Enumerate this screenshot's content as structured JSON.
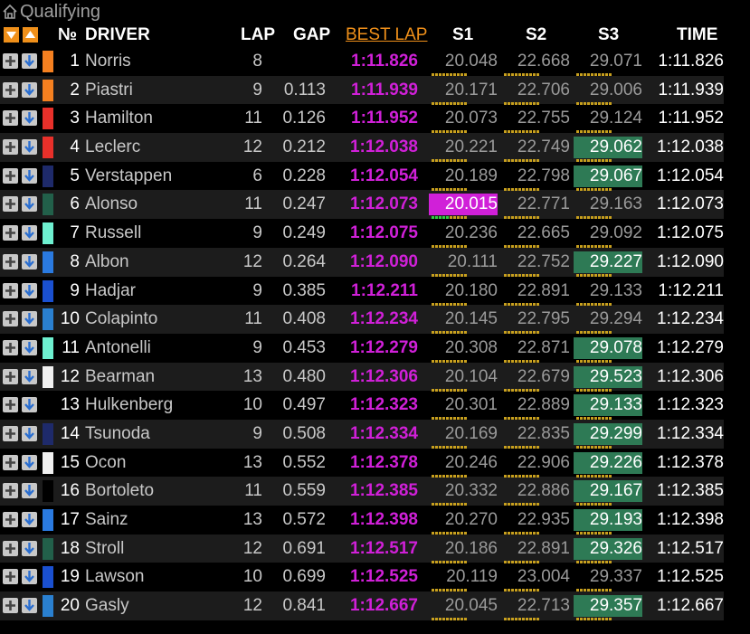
{
  "window": {
    "title": "Qualifying"
  },
  "header": {
    "no": "№",
    "driver": "DRIVER",
    "lap": "LAP",
    "gap": "GAP",
    "best_lap": "BEST LAP",
    "s1": "S1",
    "s2": "S2",
    "s3": "S3",
    "time": "TIME"
  },
  "colors": {
    "best_lap": "#d020d8",
    "best_lap_header": "#f0901a",
    "sector_personal_best": "#2e7a55",
    "sector_overall_best": "#d020d8"
  },
  "rows": [
    {
      "pos": "1",
      "driver": "Norris",
      "team_color": "#f58020",
      "lap": "8",
      "gap": "",
      "best": "1:11.826",
      "s1": "20.048",
      "s2": "22.668",
      "s3": "29.071",
      "s1_state": "grey",
      "s2_state": "grey",
      "s3_state": "grey",
      "time": "1:11.826"
    },
    {
      "pos": "2",
      "driver": "Piastri",
      "team_color": "#f58020",
      "lap": "9",
      "gap": "0.113",
      "best": "1:11.939",
      "s1": "20.171",
      "s2": "22.706",
      "s3": "29.006",
      "s1_state": "grey",
      "s2_state": "grey",
      "s3_state": "grey",
      "time": "1:11.939"
    },
    {
      "pos": "3",
      "driver": "Hamilton",
      "team_color": "#e8302a",
      "lap": "11",
      "gap": "0.126",
      "best": "1:11.952",
      "s1": "20.073",
      "s2": "22.755",
      "s3": "29.124",
      "s1_state": "grey",
      "s2_state": "grey",
      "s3_state": "grey",
      "time": "1:11.952"
    },
    {
      "pos": "4",
      "driver": "Leclerc",
      "team_color": "#e8302a",
      "lap": "12",
      "gap": "0.212",
      "best": "1:12.038",
      "s1": "20.221",
      "s2": "22.749",
      "s3": "29.062",
      "s1_state": "grey",
      "s2_state": "grey",
      "s3_state": "green",
      "time": "1:12.038"
    },
    {
      "pos": "5",
      "driver": "Verstappen",
      "team_color": "#1e2a6a",
      "lap": "6",
      "gap": "0.228",
      "best": "1:12.054",
      "s1": "20.189",
      "s2": "22.798",
      "s3": "29.067",
      "s1_state": "grey",
      "s2_state": "grey",
      "s3_state": "green",
      "time": "1:12.054"
    },
    {
      "pos": "6",
      "driver": "Alonso",
      "team_color": "#22604a",
      "lap": "11",
      "gap": "0.247",
      "best": "1:12.073",
      "s1": "20.015",
      "s2": "22.771",
      "s3": "29.163",
      "s1_state": "purple",
      "s2_state": "grey",
      "s3_state": "grey",
      "time": "1:12.073"
    },
    {
      "pos": "7",
      "driver": "Russell",
      "team_color": "#6ef0d0",
      "lap": "9",
      "gap": "0.249",
      "best": "1:12.075",
      "s1": "20.236",
      "s2": "22.665",
      "s3": "29.092",
      "s1_state": "grey",
      "s2_state": "grey",
      "s3_state": "grey",
      "time": "1:12.075"
    },
    {
      "pos": "8",
      "driver": "Albon",
      "team_color": "#2a7ae0",
      "lap": "12",
      "gap": "0.264",
      "best": "1:12.090",
      "s1": "20.111",
      "s2": "22.752",
      "s3": "29.227",
      "s1_state": "grey",
      "s2_state": "grey",
      "s3_state": "green",
      "time": "1:12.090"
    },
    {
      "pos": "9",
      "driver": "Hadjar",
      "team_color": "#1a50d0",
      "lap": "9",
      "gap": "0.385",
      "best": "1:12.211",
      "s1": "20.180",
      "s2": "22.891",
      "s3": "29.133",
      "s1_state": "grey",
      "s2_state": "grey",
      "s3_state": "grey",
      "time": "1:12.211"
    },
    {
      "pos": "10",
      "driver": "Colapinto",
      "team_color": "#2a80d0",
      "lap": "11",
      "gap": "0.408",
      "best": "1:12.234",
      "s1": "20.145",
      "s2": "22.795",
      "s3": "29.294",
      "s1_state": "grey",
      "s2_state": "grey",
      "s3_state": "grey",
      "time": "1:12.234"
    },
    {
      "pos": "11",
      "driver": "Antonelli",
      "team_color": "#6ef0d0",
      "lap": "9",
      "gap": "0.453",
      "best": "1:12.279",
      "s1": "20.308",
      "s2": "22.871",
      "s3": "29.078",
      "s1_state": "grey",
      "s2_state": "grey",
      "s3_state": "green",
      "time": "1:12.279"
    },
    {
      "pos": "12",
      "driver": "Bearman",
      "team_color": "#f0f0f0",
      "lap": "13",
      "gap": "0.480",
      "best": "1:12.306",
      "s1": "20.104",
      "s2": "22.679",
      "s3": "29.523",
      "s1_state": "grey",
      "s2_state": "grey",
      "s3_state": "green",
      "time": "1:12.306"
    },
    {
      "pos": "13",
      "driver": "Hulkenberg",
      "team_color": "#000000",
      "lap": "10",
      "gap": "0.497",
      "best": "1:12.323",
      "s1": "20.301",
      "s2": "22.889",
      "s3": "29.133",
      "s1_state": "grey",
      "s2_state": "grey",
      "s3_state": "green",
      "time": "1:12.323"
    },
    {
      "pos": "14",
      "driver": "Tsunoda",
      "team_color": "#1e2a6a",
      "lap": "9",
      "gap": "0.508",
      "best": "1:12.334",
      "s1": "20.169",
      "s2": "22.835",
      "s3": "29.299",
      "s1_state": "grey",
      "s2_state": "grey",
      "s3_state": "green",
      "time": "1:12.334"
    },
    {
      "pos": "15",
      "driver": "Ocon",
      "team_color": "#f0f0f0",
      "lap": "13",
      "gap": "0.552",
      "best": "1:12.378",
      "s1": "20.246",
      "s2": "22.906",
      "s3": "29.226",
      "s1_state": "grey",
      "s2_state": "grey",
      "s3_state": "green",
      "time": "1:12.378"
    },
    {
      "pos": "16",
      "driver": "Bortoleto",
      "team_color": "#000000",
      "lap": "11",
      "gap": "0.559",
      "best": "1:12.385",
      "s1": "20.332",
      "s2": "22.886",
      "s3": "29.167",
      "s1_state": "grey",
      "s2_state": "grey",
      "s3_state": "green",
      "time": "1:12.385"
    },
    {
      "pos": "17",
      "driver": "Sainz",
      "team_color": "#2a7ae0",
      "lap": "13",
      "gap": "0.572",
      "best": "1:12.398",
      "s1": "20.270",
      "s2": "22.935",
      "s3": "29.193",
      "s1_state": "grey",
      "s2_state": "grey",
      "s3_state": "green",
      "time": "1:12.398"
    },
    {
      "pos": "18",
      "driver": "Stroll",
      "team_color": "#22604a",
      "lap": "12",
      "gap": "0.691",
      "best": "1:12.517",
      "s1": "20.186",
      "s2": "22.891",
      "s3": "29.326",
      "s1_state": "grey",
      "s2_state": "grey",
      "s3_state": "green",
      "time": "1:12.517"
    },
    {
      "pos": "19",
      "driver": "Lawson",
      "team_color": "#1a50d0",
      "lap": "10",
      "gap": "0.699",
      "best": "1:12.525",
      "s1": "20.119",
      "s2": "23.004",
      "s3": "29.337",
      "s1_state": "grey",
      "s2_state": "grey",
      "s3_state": "grey",
      "time": "1:12.525"
    },
    {
      "pos": "20",
      "driver": "Gasly",
      "team_color": "#2a80d0",
      "lap": "12",
      "gap": "0.841",
      "best": "1:12.667",
      "s1": "20.045",
      "s2": "22.713",
      "s3": "29.357",
      "s1_state": "grey",
      "s2_state": "grey",
      "s3_state": "green",
      "time": "1:12.667"
    }
  ]
}
